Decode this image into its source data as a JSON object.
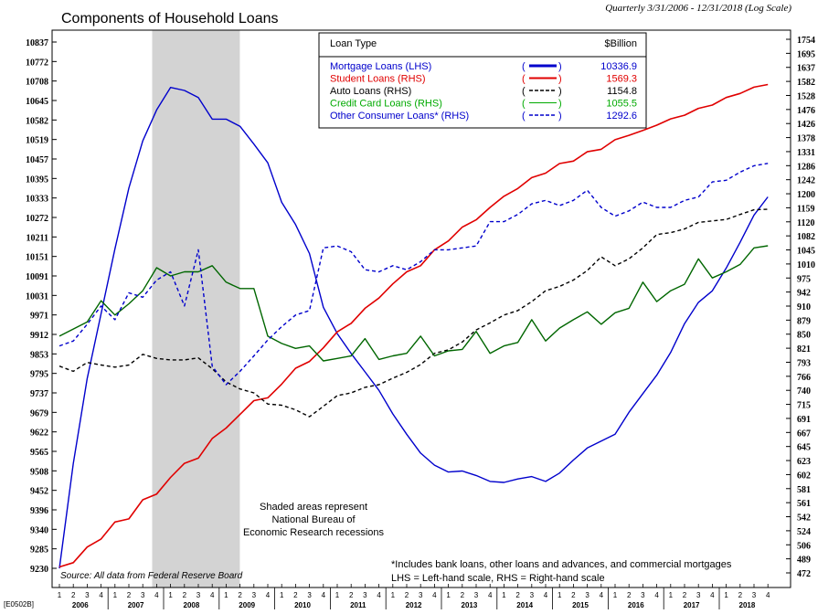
{
  "chart_data": {
    "type": "line",
    "title": "Components of Household Loans",
    "subtitle": "Quarterly 3/31/2006 - 12/31/2018 (Log Scale)",
    "code": "[E0502B]",
    "source": "Source: All data from Federal Reserve Board",
    "recession_note": [
      "Shaded areas represent",
      "National Bureau of",
      "Economic Research recessions"
    ],
    "footnote_1": "*Includes bank loans, other loans and advances, and commercial mortgages",
    "footnote_2": "LHS = Left-hand scale, RHS = Right-hand scale",
    "recession": {
      "start": "2007-12-01",
      "end": "2009-06-30"
    },
    "years": [
      "2006",
      "2007",
      "2008",
      "2009",
      "2010",
      "2011",
      "2012",
      "2013",
      "2014",
      "2015",
      "2016",
      "2017",
      "2018"
    ],
    "quarter_labels": [
      "1",
      "2",
      "3",
      "4"
    ],
    "left_axis": {
      "ticks": [
        9230,
        9285,
        9340,
        9396,
        9452,
        9508,
        9565,
        9622,
        9679,
        9737,
        9795,
        9853,
        9912,
        9971,
        10031,
        10091,
        10151,
        10211,
        10272,
        10333,
        10395,
        10457,
        10519,
        10582,
        10645,
        10708,
        10772,
        10837
      ]
    },
    "right_axis": {
      "ticks": [
        472,
        489,
        506,
        524,
        542,
        561,
        581,
        602,
        623,
        645,
        667,
        691,
        715,
        740,
        766,
        793,
        821,
        850,
        879,
        910,
        942,
        975,
        1010,
        1045,
        1082,
        1120,
        1159,
        1200,
        1242,
        1286,
        1331,
        1378,
        1426,
        1476,
        1528,
        1582,
        1637,
        1695,
        1754
      ]
    },
    "legend": {
      "header_type": "Loan Type",
      "header_value": "$Billion",
      "entries": [
        {
          "label": "Mortgage Loans (LHS)",
          "value": "10336.9",
          "color": "#0000cc",
          "dash": "solid",
          "width": 3
        },
        {
          "label": "Student Loans (RHS)",
          "value": "1569.3",
          "color": "#e00000",
          "dash": "solid",
          "width": 2
        },
        {
          "label": "Auto Loans (RHS)",
          "value": "1154.8",
          "color": "#000000",
          "dash": "dashed",
          "width": 1.5
        },
        {
          "label": "Credit Card Loans (RHS)",
          "value": "1055.5",
          "color": "#00aa00",
          "dash": "solid",
          "width": 1
        },
        {
          "label": "Other Consumer Loans* (RHS)",
          "value": "1292.6",
          "color": "#0000cc",
          "dash": "dashed",
          "width": 1.5
        }
      ]
    },
    "series": [
      {
        "name": "Mortgage Loans (LHS)",
        "axis": "left",
        "color": "#0000cc",
        "dash": "",
        "width": 1.4,
        "values": [
          9230,
          9530,
          9780,
          9975,
          10175,
          10365,
          10515,
          10615,
          10688,
          10678,
          10655,
          10585,
          10585,
          10562,
          10505,
          10445,
          10320,
          10250,
          10160,
          9995,
          9915,
          9855,
          9800,
          9745,
          9675,
          9615,
          9560,
          9525,
          9505,
          9508,
          9495,
          9478,
          9475,
          9485,
          9492,
          9478,
          9502,
          9540,
          9575,
          9595,
          9615,
          9680,
          9735,
          9790,
          9858,
          9945,
          10010,
          10045,
          10115,
          10195,
          10280,
          10336.9
        ]
      },
      {
        "name": "Student Loans (RHS)",
        "axis": "right",
        "color": "#e00000",
        "dash": "",
        "width": 1.6,
        "values": [
          479,
          484,
          503,
          513,
          535,
          539,
          565,
          573,
          597,
          618,
          626,
          657,
          674,
          697,
          721,
          726,
          751,
          781,
          794,
          821,
          854,
          872,
          905,
          928,
          961,
          990,
          1005,
          1045,
          1068,
          1105,
          1125,
          1160,
          1192,
          1215,
          1248,
          1262,
          1292,
          1300,
          1330,
          1338,
          1370,
          1385,
          1402,
          1420,
          1442,
          1455,
          1480,
          1492,
          1520,
          1535,
          1559,
          1569.3
        ]
      },
      {
        "name": "Auto Loans (RHS)",
        "axis": "right",
        "color": "#000000",
        "dash": "4,3",
        "width": 1.4,
        "values": [
          785,
          775,
          792,
          787,
          783,
          787,
          808,
          800,
          797,
          797,
          801,
          780,
          755,
          742,
          735,
          715,
          713,
          705,
          693,
          711,
          730,
          735,
          745,
          750,
          762,
          773,
          788,
          810,
          817,
          833,
          858,
          873,
          890,
          900,
          920,
          945,
          955,
          970,
          993,
          1027,
          1005,
          1022,
          1050,
          1085,
          1090,
          1100,
          1118,
          1122,
          1126,
          1140,
          1153,
          1154.8
        ]
      },
      {
        "name": "Credit Card Loans (RHS)",
        "axis": "right",
        "color": "#006600",
        "dash": "",
        "width": 1.4,
        "values": [
          845,
          860,
          875,
          922,
          890,
          915,
          945,
          1000,
          980,
          990,
          990,
          1005,
          965,
          950,
          950,
          845,
          830,
          820,
          825,
          795,
          800,
          805,
          840,
          798,
          805,
          810,
          845,
          805,
          815,
          818,
          855,
          810,
          825,
          832,
          880,
          835,
          862,
          880,
          897,
          870,
          895,
          905,
          965,
          920,
          945,
          960,
          1022,
          975,
          990,
          1008,
          1050,
          1055.5
        ]
      },
      {
        "name": "Other Consumer Loans* (RHS)",
        "axis": "right",
        "color": "#0000cc",
        "dash": "4,3",
        "width": 1.4,
        "values": [
          825,
          835,
          870,
          910,
          880,
          940,
          930,
          970,
          990,
          910,
          1045,
          785,
          750,
          775,
          805,
          837,
          865,
          890,
          900,
          1050,
          1055,
          1040,
          995,
          990,
          1005,
          995,
          1015,
          1045,
          1045,
          1050,
          1055,
          1120,
          1120,
          1140,
          1170,
          1180,
          1165,
          1180,
          1210,
          1160,
          1135,
          1150,
          1175,
          1160,
          1160,
          1180,
          1190,
          1235,
          1240,
          1265,
          1285,
          1292.6
        ]
      }
    ]
  }
}
